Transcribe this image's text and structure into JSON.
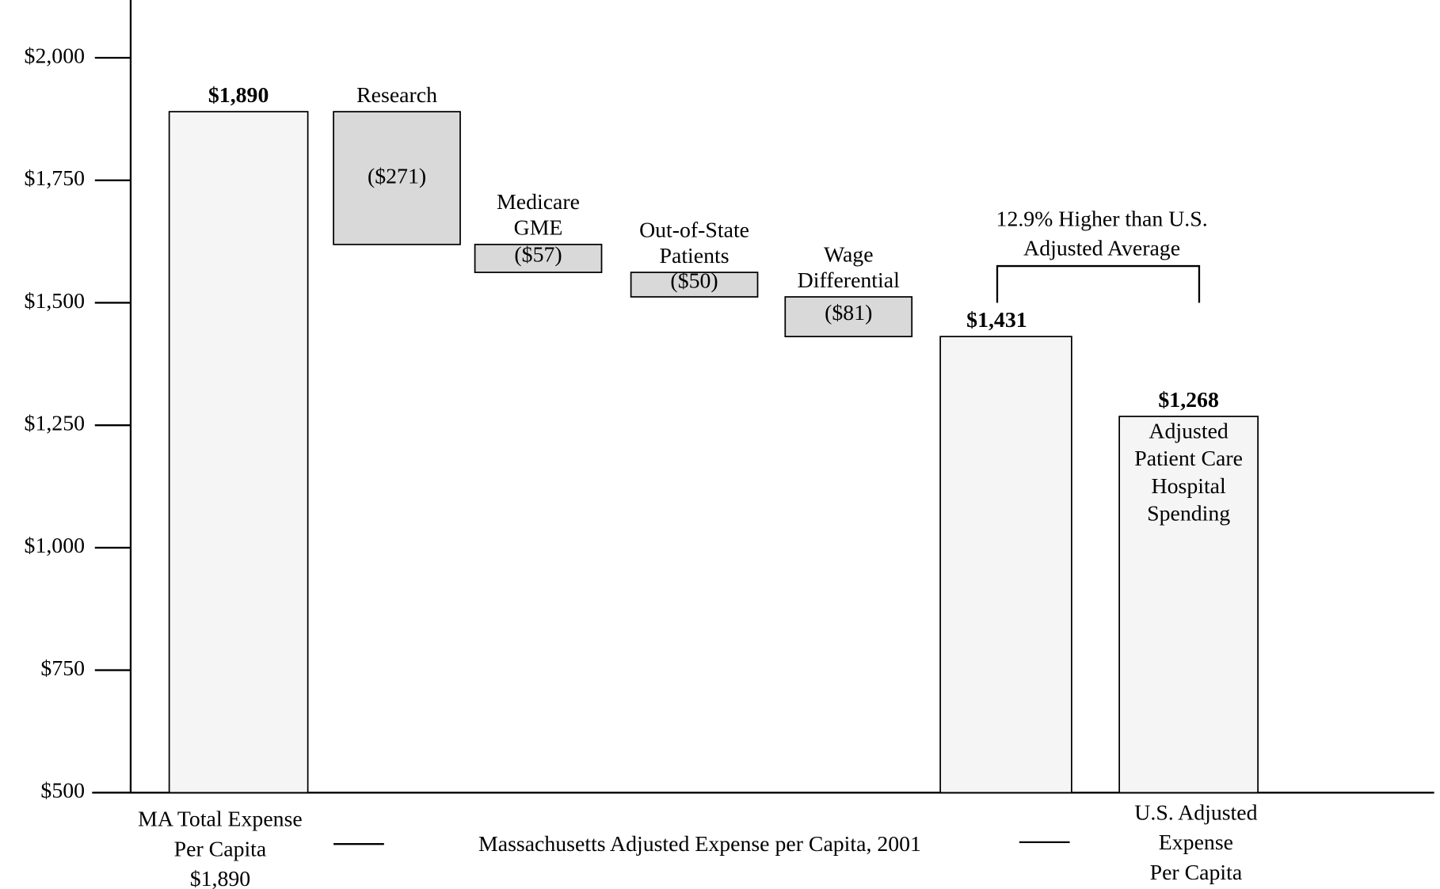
{
  "chart_data": {
    "type": "waterfall",
    "categories": [
      [
        "MA Total Expense",
        "Per Capita",
        "$1,890"
      ],
      [
        "Research"
      ],
      [
        "Medicare",
        "GME"
      ],
      [
        "Out-of-State",
        "Patients"
      ],
      [
        "Wage",
        "Differential"
      ],
      null,
      [
        "U.S. Adjusted",
        "Expense",
        "Per Capita"
      ]
    ],
    "values": [
      1890,
      -271,
      -57,
      -50,
      -81,
      1431,
      1268
    ],
    "value_labels": [
      "$1,890",
      "($271)",
      "($57)",
      "($50)",
      "($81)",
      "$1,431",
      "$1,268"
    ],
    "color": "#f5f5f5",
    "decrease_color": "#d9d9d9",
    "x_label": "Massachusetts Adjusted Expense per Capita, 2001",
    "bar_annotation": [
      "Adjusted",
      "Patient Care",
      "Hospital",
      "Spending"
    ],
    "bracket_annotation": [
      "12.9% Higher than U.S.",
      "Adjusted Average"
    ],
    "ylim": [
      500,
      2100
    ],
    "yticks": [
      {
        "value": 500,
        "label": "$500"
      },
      {
        "value": 750,
        "label": "$750"
      },
      {
        "value": 1000,
        "label": "$1,000"
      },
      {
        "value": 1250,
        "label": "$1,250"
      },
      {
        "value": 1500,
        "label": "$1,500"
      },
      {
        "value": 1750,
        "label": "$1,750"
      },
      {
        "value": 2000,
        "label": "$2,000"
      }
    ],
    "grid": false
  }
}
